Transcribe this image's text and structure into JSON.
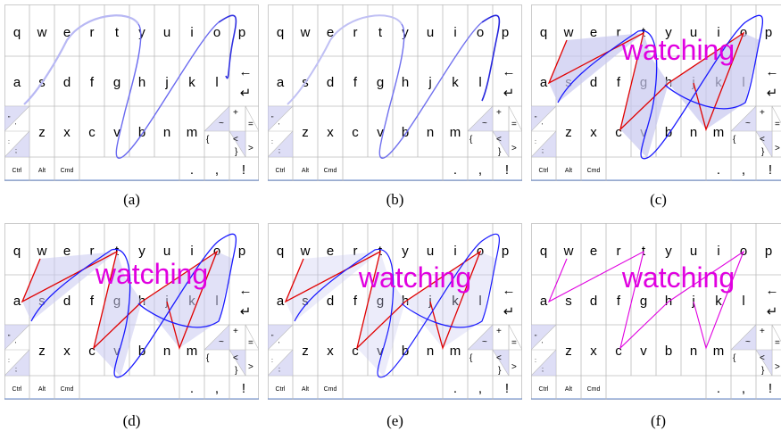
{
  "keyboard": {
    "row1": [
      "q",
      "w",
      "e",
      "r",
      "t",
      "y",
      "u",
      "i",
      "o",
      "p"
    ],
    "row2": [
      "a",
      "s",
      "d",
      "f",
      "g",
      "h",
      "j",
      "k",
      "l"
    ],
    "row3": [
      "z",
      "x",
      "c",
      "v",
      "b",
      "n",
      "m"
    ],
    "row4": [
      "Ctrl",
      "Alt",
      "Cmd"
    ],
    "punct": [
      ".",
      ",",
      "!"
    ],
    "sym_left": [
      "\"",
      "'",
      ":",
      ";"
    ],
    "sym_right": [
      "~",
      "+",
      "=",
      "<",
      ">",
      "{",
      "}"
    ],
    "arrows": [
      "←",
      "↵"
    ]
  },
  "panels": [
    {
      "caption": "(a)",
      "word": ""
    },
    {
      "caption": "(b)",
      "word": ""
    },
    {
      "caption": "(c)",
      "word": "watching"
    },
    {
      "caption": "(d)",
      "word": "watching"
    },
    {
      "caption": "(e)",
      "word": "watching"
    },
    {
      "caption": "(f)",
      "word": "watching"
    }
  ],
  "colors": {
    "gesture_blue": "#1a1aff",
    "gesture_red": "#e00000",
    "word_magenta": "#e000e0",
    "fill_lavender": "#c8c8f0",
    "grid": "#bbbbbb"
  }
}
